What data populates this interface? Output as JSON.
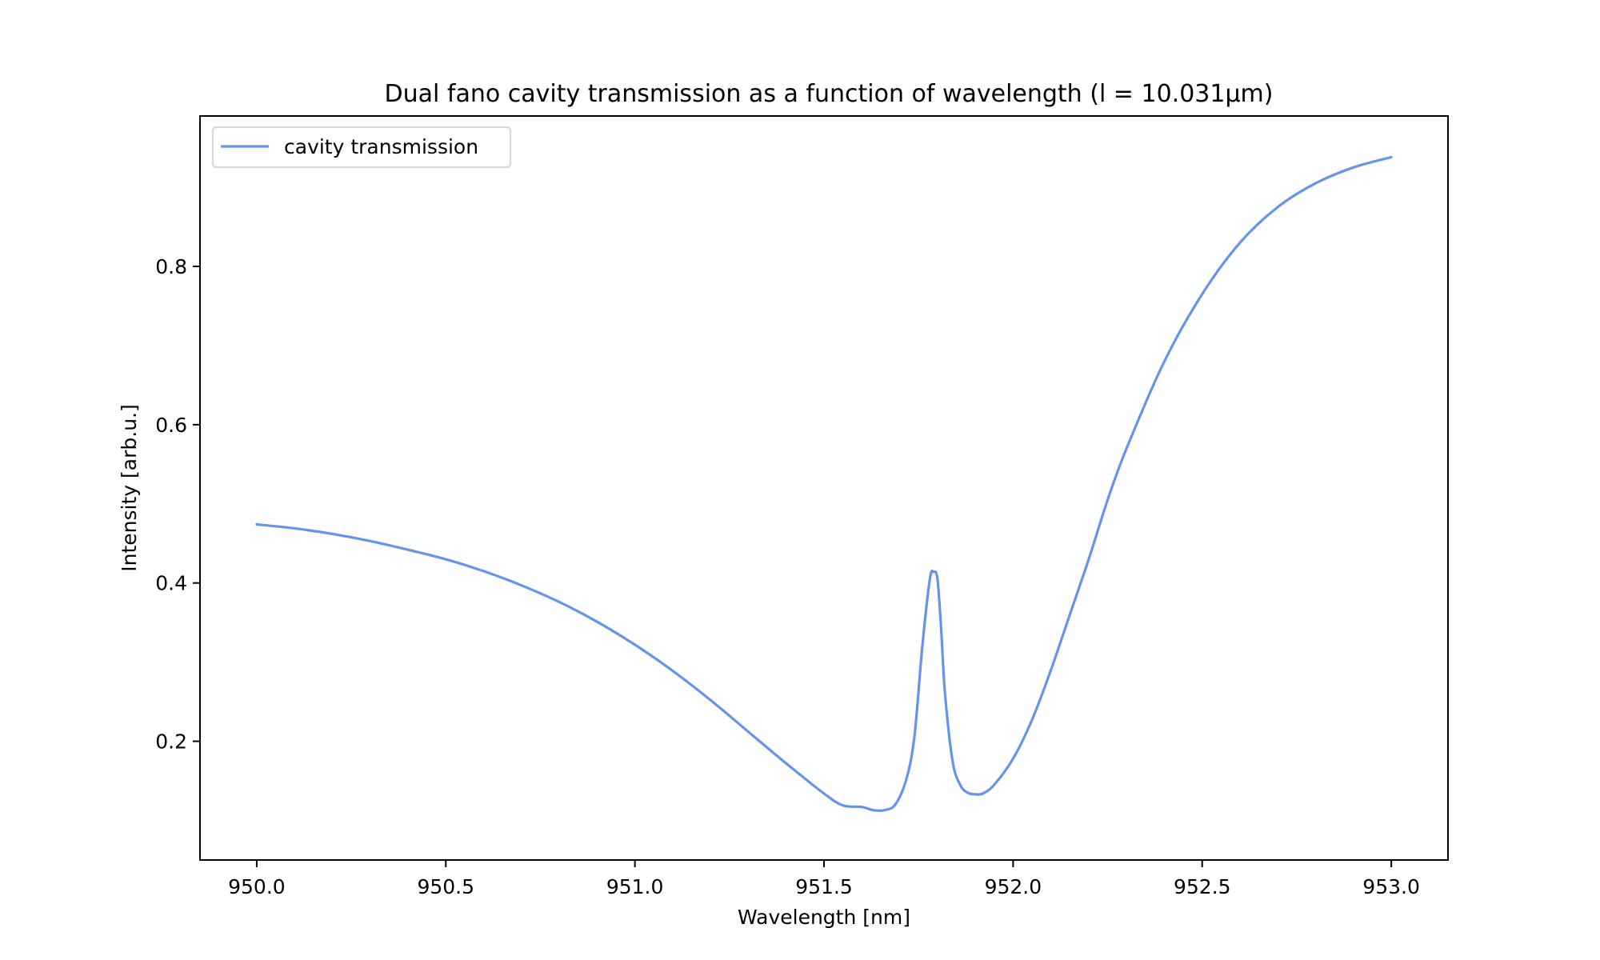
{
  "chart_data": {
    "type": "line",
    "title": "Dual fano cavity transmission as a function of wavelength (l = 10.031µm)",
    "xlabel": "Wavelength [nm]",
    "ylabel": "Intensity [arb.u.]",
    "xlim": [
      949.85,
      953.15
    ],
    "ylim": [
      0.05,
      0.99
    ],
    "x_ticks": [
      950.0,
      950.5,
      951.0,
      951.5,
      952.0,
      952.5,
      953.0
    ],
    "x_tick_labels": [
      "950.0",
      "950.5",
      "951.0",
      "951.5",
      "952.0",
      "952.5",
      "953.0"
    ],
    "y_ticks": [
      0.2,
      0.4,
      0.6,
      0.8
    ],
    "y_tick_labels": [
      "0.2",
      "0.4",
      "0.6",
      "0.8"
    ],
    "grid": false,
    "legend_position": "upper-left",
    "series": [
      {
        "name": "cavity transmission",
        "color": "#6495ed",
        "x": [
          950.0,
          950.1,
          950.2,
          950.3,
          950.4,
          950.5,
          950.6,
          950.7,
          950.8,
          950.9,
          951.0,
          951.1,
          951.2,
          951.3,
          951.4,
          951.5,
          951.55,
          951.6,
          951.63,
          951.66,
          951.69,
          951.72,
          951.74,
          951.76,
          951.78,
          951.79,
          951.8,
          951.81,
          951.82,
          951.84,
          951.86,
          951.88,
          951.9,
          951.92,
          951.95,
          952.0,
          952.05,
          952.1,
          952.15,
          952.2,
          952.25,
          952.3,
          952.4,
          952.5,
          952.6,
          952.7,
          952.8,
          952.9,
          953.0
        ],
        "values": [
          0.474,
          0.469,
          0.462,
          0.453,
          0.442,
          0.43,
          0.415,
          0.397,
          0.376,
          0.351,
          0.322,
          0.289,
          0.252,
          0.212,
          0.172,
          0.134,
          0.119,
          0.117,
          0.113,
          0.113,
          0.121,
          0.156,
          0.21,
          0.32,
          0.405,
          0.414,
          0.405,
          0.34,
          0.26,
          0.175,
          0.145,
          0.135,
          0.133,
          0.134,
          0.145,
          0.178,
          0.227,
          0.29,
          0.36,
          0.43,
          0.505,
          0.57,
          0.68,
          0.765,
          0.83,
          0.875,
          0.905,
          0.925,
          0.938
        ]
      }
    ]
  }
}
